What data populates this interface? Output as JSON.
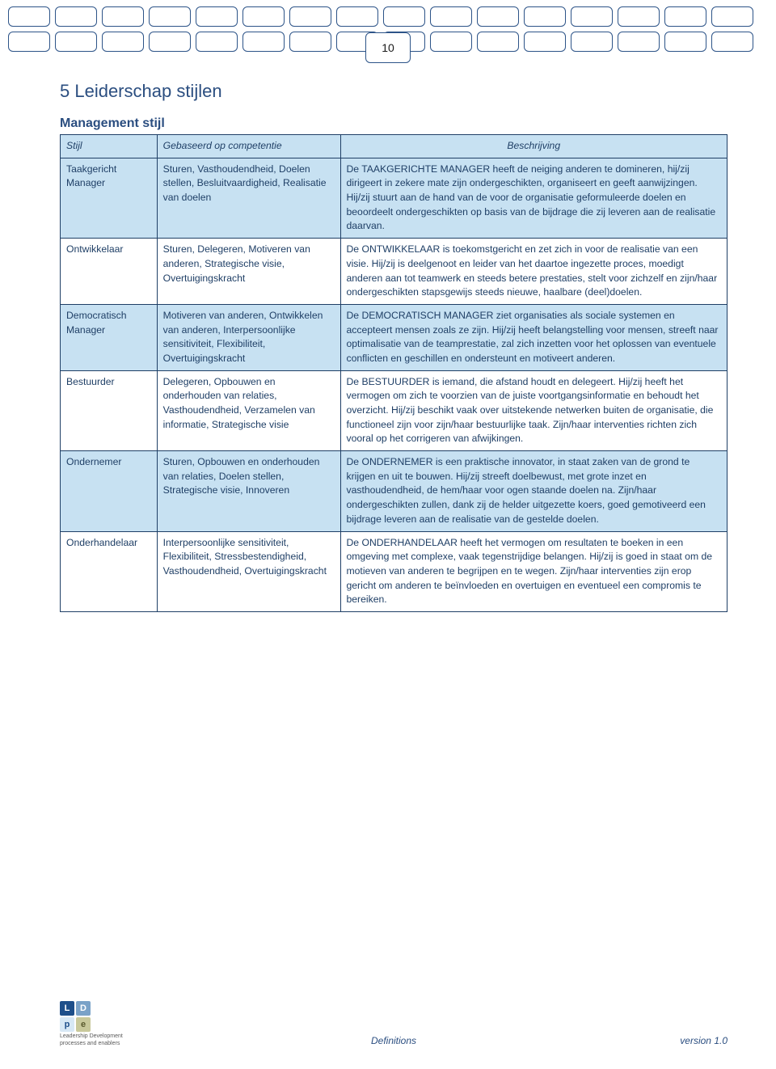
{
  "page_number": "10",
  "section_title": "5 Leiderschap stijlen",
  "subsection_title": "Management stijl",
  "table": {
    "columns": [
      "Stijl",
      "Gebaseerd op competentie",
      "Beschrijving"
    ],
    "rows": [
      {
        "shaded": true,
        "stijl": "Taakgericht Manager",
        "comp": "Sturen, Vasthoudendheid, Doelen stellen, Besluitvaardigheid, Realisatie van doelen",
        "desc": "De TAAKGERICHTE MANAGER heeft de neiging anderen te domineren, hij/zij dirigeert in zekere mate zijn ondergeschikten, organiseert en geeft aanwijzingen. Hij/zij stuurt aan de hand van de voor de organisatie geformuleerde doelen en beoordeelt ondergeschikten op basis van de bijdrage die zij leveren aan de realisatie daarvan."
      },
      {
        "shaded": false,
        "stijl": "Ontwikkelaar",
        "comp": "Sturen, Delegeren, Motiveren van anderen, Strategische visie, Overtuigingskracht",
        "desc": "De ONTWIKKELAAR is toekomstgericht en zet zich in voor de realisatie van een visie. Hij/zij is deelgenoot en leider van het daartoe ingezette proces, moedigt anderen aan tot teamwerk en steeds betere prestaties, stelt voor zichzelf en zijn/haar ondergeschikten stapsgewijs steeds nieuwe, haalbare (deel)doelen."
      },
      {
        "shaded": true,
        "stijl": "Democratisch Manager",
        "comp": "Motiveren van anderen, Ontwikkelen van anderen, Interpersoonlijke sensitiviteit, Flexibiliteit, Overtuigingskracht",
        "desc": "De DEMOCRATISCH MANAGER ziet organisaties als sociale systemen en accepteert mensen zoals ze zijn. Hij/zij heeft belangstelling voor mensen, streeft naar optimalisatie van de teamprestatie, zal zich inzetten voor het oplossen van eventuele conflicten en geschillen en ondersteunt en motiveert anderen."
      },
      {
        "shaded": false,
        "stijl": "Bestuurder",
        "comp": "Delegeren, Opbouwen en onderhouden van relaties, Vasthoudendheid, Verzamelen van informatie, Strategische visie",
        "desc": "De BESTUURDER is iemand, die afstand houdt en delegeert. Hij/zij heeft het vermogen om zich te voorzien van de juiste voortgangsinformatie en behoudt het overzicht. Hij/zij beschikt vaak over uitstekende netwerken buiten de organisatie, die functioneel zijn voor zijn/haar bestuurlijke taak. Zijn/haar interventies richten zich vooral op het corrigeren van afwijkingen."
      },
      {
        "shaded": true,
        "stijl": "Ondernemer",
        "comp": "Sturen, Opbouwen en onderhouden van relaties, Doelen stellen, Strategische visie, Innoveren",
        "desc": "De ONDERNEMER is een praktische innovator, in staat zaken van de grond te krijgen en uit te bouwen. Hij/zij streeft doelbewust, met grote inzet en vasthoudendheid, de hem/haar voor ogen staande doelen na. Zijn/haar ondergeschikten zullen, dank zij de helder uitgezette koers, goed gemotiveerd een bijdrage leveren aan de realisatie van de gestelde doelen."
      },
      {
        "shaded": false,
        "stijl": "Onderhandelaar",
        "comp": "Interpersoonlijke sensitiviteit, Flexibiliteit, Stressbestendigheid, Vasthoudendheid, Overtuigingskracht",
        "desc": "De ONDERHANDELAAR heeft het vermogen om resultaten te boeken in een omgeving met complexe, vaak tegenstrijdige belangen. Hij/zij is goed in staat om de motieven van anderen te begrijpen en te wegen. Zijn/haar interventies zijn erop gericht om anderen te beïnvloeden en overtuigen en eventueel een compromis te bereiken."
      }
    ]
  },
  "footer": {
    "center": "Definitions",
    "right": "version 1.0",
    "logo_letters": [
      "L",
      "D",
      "p",
      "e"
    ],
    "logo_caption1": "Leadership Development",
    "logo_caption2": "processes and enablers"
  },
  "colors": {
    "border": "#1f3f66",
    "shaded_bg": "#c7e1f2",
    "text": "#1f3f66",
    "heading": "#2b4e80"
  }
}
